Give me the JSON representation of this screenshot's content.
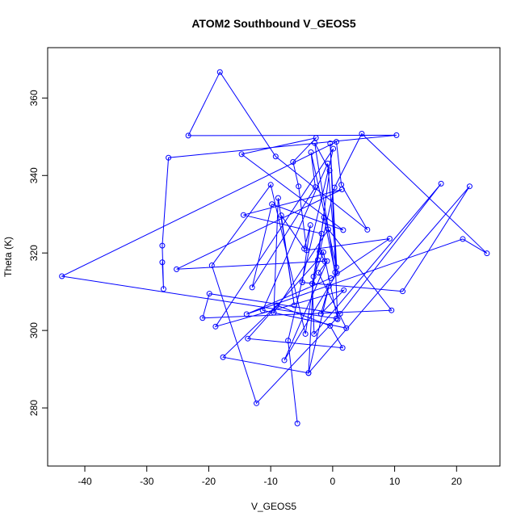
{
  "chart_data": {
    "type": "line",
    "title": "ATOM2 Southbound V_GEOS5",
    "xlabel": "V_GEOS5",
    "ylabel": "Theta (K)",
    "xlim": [
      -46.0,
      27.0
    ],
    "ylim": [
      265.0,
      373.0
    ],
    "x_ticks": [
      -40,
      -30,
      -20,
      -10,
      0,
      10,
      20
    ],
    "y_ticks": [
      280,
      300,
      320,
      340,
      360
    ],
    "x_tick_labels": [
      "-40",
      "-30",
      "-20",
      "-10",
      "0",
      "10",
      "20"
    ],
    "y_tick_labels": [
      "280",
      "300",
      "320",
      "340",
      "360"
    ],
    "grid": false,
    "series_color": "#0000ff",
    "marker": "open-circle",
    "series": [
      {
        "x": [
          -27.5,
          -27.3,
          -27.5,
          -26.5,
          10.3,
          -23.3,
          -18.2,
          -9.2,
          5.6,
          1.4,
          0.6,
          -43.7,
          0.6,
          -12.3,
          -19.5,
          -10.0,
          -4.4,
          -1.8,
          -14.4,
          1.5,
          -25.2,
          -1.3,
          -2.1,
          0.3,
          4.7,
          24.9,
          21.0,
          -13.9,
          -0.3,
          9.2,
          -4.2,
          -5.5,
          -6.4,
          -2.7,
          -14.7,
          1.7,
          -9.8,
          -13.0,
          -2.8,
          -3.5,
          0.6,
          -0.8,
          -11.3,
          2.2,
          -2.3,
          -0.9,
          -7.8,
          0.7,
          -0.4,
          0.8,
          -1.5,
          -3.1,
          -3.9,
          22.1,
          11.3,
          -4.9,
          -3.6,
          -4.6,
          -8.3,
          -6.2,
          -8.8,
          -9.5,
          -0.7,
          9.5,
          -21.0,
          -19.9,
          1.2,
          17.5,
          -3.0,
          -3.3,
          -1.4,
          0.4,
          -2.9,
          -0.5,
          -2.4,
          -13.7,
          1.6,
          -0.4,
          -9.0,
          -17.7,
          -3.9,
          -0.6,
          -1.9,
          1.8,
          -18.9,
          0.1,
          -7.2,
          -5.7
        ],
        "y": [
          317.6,
          310.7,
          321.9,
          344.6,
          350.4,
          350.3,
          366.7,
          344.9,
          326.0,
          337.6,
          348.7,
          314.0,
          303.1,
          281.2,
          316.8,
          337.6,
          299.1,
          325.0,
          329.8,
          336.4,
          315.8,
          317.9,
          320.3,
          336.9,
          350.8,
          319.9,
          323.6,
          304.2,
          313.5,
          323.7,
          320.7,
          337.2,
          343.5,
          349.7,
          345.5,
          325.9,
          332.6,
          311.1,
          337.0,
          346.0,
          316.3,
          343.1,
          305.2,
          300.6,
          314.9,
          317.9,
          292.3,
          314.8,
          348.3,
          302.9,
          320.2,
          313.9,
          289.0,
          337.2,
          310.1,
          312.4,
          327.2,
          321.1,
          329.7,
          306.5,
          334.2,
          304.6,
          326.1,
          305.2,
          303.2,
          309.5,
          304.3,
          337.9,
          299.1,
          312.1,
          329.2,
          315.0,
          348.4,
          341.3,
          318.2,
          297.9,
          295.5,
          301.2,
          306.5,
          293.1,
          289.0,
          311.5,
          304.3,
          310.4,
          301.0,
          346.9,
          297.4,
          276.0
        ]
      }
    ]
  }
}
